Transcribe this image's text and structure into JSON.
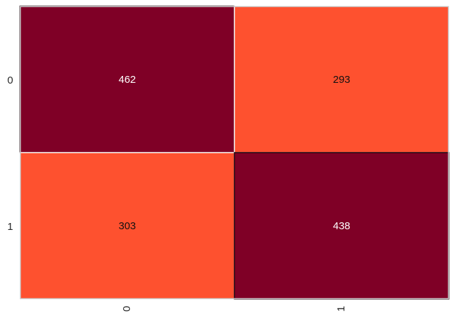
{
  "chart_data": {
    "type": "heatmap",
    "x_categories": [
      "0",
      "1"
    ],
    "y_categories": [
      "0",
      "1"
    ],
    "values": [
      [
        462,
        293
      ],
      [
        303,
        438
      ]
    ],
    "colors": {
      "high": "#7f0026",
      "low": "#fe512f",
      "text_on_high": "#ffffff",
      "text_on_low": "#111111",
      "frame": "#cccccc"
    },
    "x_tick_rotation": "vertical",
    "grid": false,
    "legend": "none"
  }
}
